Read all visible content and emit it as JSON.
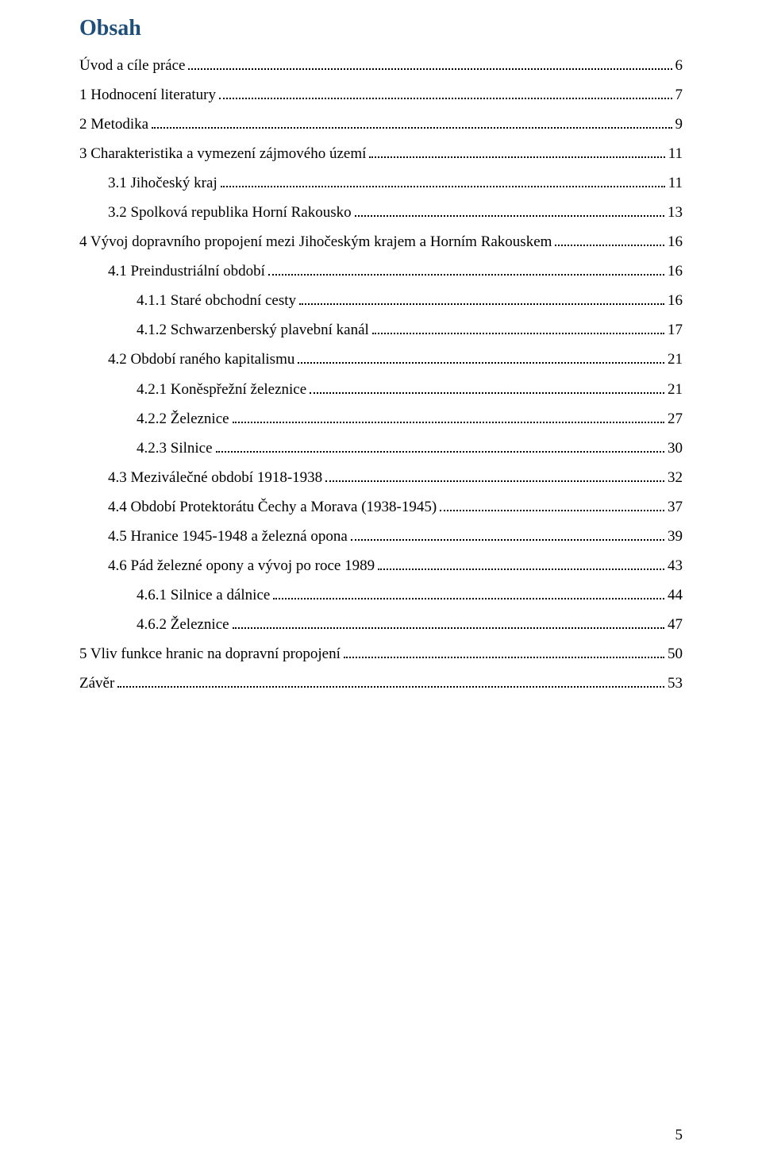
{
  "title": "Obsah",
  "page_number": "5",
  "colors": {
    "title_color": "#1f4e79",
    "text_color": "#000000",
    "background": "#ffffff"
  },
  "typography": {
    "title_fontsize_pt": 21,
    "body_fontsize_pt": 14,
    "font_family": "Times New Roman"
  },
  "toc": [
    {
      "label": "Úvod a cíle práce",
      "page": "6",
      "indent": 0
    },
    {
      "label": "1 Hodnocení literatury",
      "page": "7",
      "indent": 0
    },
    {
      "label": "2 Metodika",
      "page": "9",
      "indent": 0
    },
    {
      "label": "3 Charakteristika a vymezení zájmového území",
      "page": "11",
      "indent": 0
    },
    {
      "label": "3.1 Jihočeský kraj",
      "page": "11",
      "indent": 1
    },
    {
      "label": "3.2 Spolková republika Horní Rakousko",
      "page": "13",
      "indent": 1
    },
    {
      "label": "4 Vývoj dopravního propojení mezi Jihočeským krajem a Horním Rakouskem",
      "page": "16",
      "indent": 0
    },
    {
      "label": "4.1 Preindustriální období",
      "page": "16",
      "indent": 1
    },
    {
      "label": "4.1.1 Staré obchodní cesty",
      "page": "16",
      "indent": 2
    },
    {
      "label": "4.1.2 Schwarzenberský plavební kanál",
      "page": "17",
      "indent": 2
    },
    {
      "label": "4.2 Období raného kapitalismu",
      "page": "21",
      "indent": 1
    },
    {
      "label": "4.2.1 Koněspřežní železnice",
      "page": "21",
      "indent": 2
    },
    {
      "label": "4.2.2 Železnice",
      "page": "27",
      "indent": 2
    },
    {
      "label": "4.2.3 Silnice",
      "page": "30",
      "indent": 2
    },
    {
      "label": "4.3 Meziválečné období 1918-1938",
      "page": "32",
      "indent": 1
    },
    {
      "label": "4.4 Období Protektorátu Čechy a Morava (1938-1945)",
      "page": "37",
      "indent": 1
    },
    {
      "label": "4.5 Hranice 1945-1948 a železná opona",
      "page": "39",
      "indent": 1
    },
    {
      "label": "4.6 Pád železné opony a vývoj po roce 1989",
      "page": "43",
      "indent": 1
    },
    {
      "label": "4.6.1 Silnice a dálnice",
      "page": "44",
      "indent": 2
    },
    {
      "label": "4.6.2 Železnice",
      "page": "47",
      "indent": 2
    },
    {
      "label": "5 Vliv funkce hranic na dopravní propojení",
      "page": "50",
      "indent": 0
    },
    {
      "label": "Závěr",
      "page": "53",
      "indent": 0
    }
  ]
}
